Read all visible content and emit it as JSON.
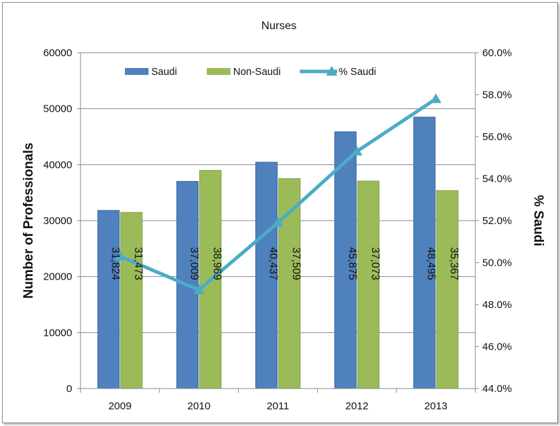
{
  "chart_data": {
    "type": "bar",
    "title": "Nurses",
    "categories": [
      "2009",
      "2010",
      "2011",
      "2012",
      "2013"
    ],
    "series": [
      {
        "name": "Saudi",
        "type": "bar",
        "axis": "left",
        "color": "#4F81BD",
        "values": [
          31824,
          37009,
          40437,
          45875,
          48495
        ],
        "labels": [
          "31,824",
          "37,009",
          "40,437",
          "45,875",
          "48,495"
        ]
      },
      {
        "name": "Non-Saudi",
        "type": "bar",
        "axis": "left",
        "color": "#9BBB59",
        "values": [
          31473,
          38969,
          37509,
          37073,
          35367
        ],
        "labels": [
          "31,473",
          "38,969",
          "37,509",
          "37,073",
          "35,367"
        ]
      },
      {
        "name": "% Saudi",
        "type": "line",
        "axis": "right",
        "color": "#4BACC6",
        "values": [
          50.3,
          48.7,
          51.9,
          55.3,
          57.8
        ]
      }
    ],
    "ylabel": "Number of Professionals",
    "y2label": "% Saudi",
    "ylim": [
      0,
      60000
    ],
    "y2lim": [
      44.0,
      60.0
    ],
    "yticks": [
      "0",
      "10000",
      "20000",
      "30000",
      "40000",
      "50000",
      "60000"
    ],
    "y2ticks": [
      "44.0%",
      "46.0%",
      "48.0%",
      "50.0%",
      "52.0%",
      "54.0%",
      "56.0%",
      "58.0%",
      "60.0%"
    ],
    "grid": true,
    "legend_position": "top"
  }
}
